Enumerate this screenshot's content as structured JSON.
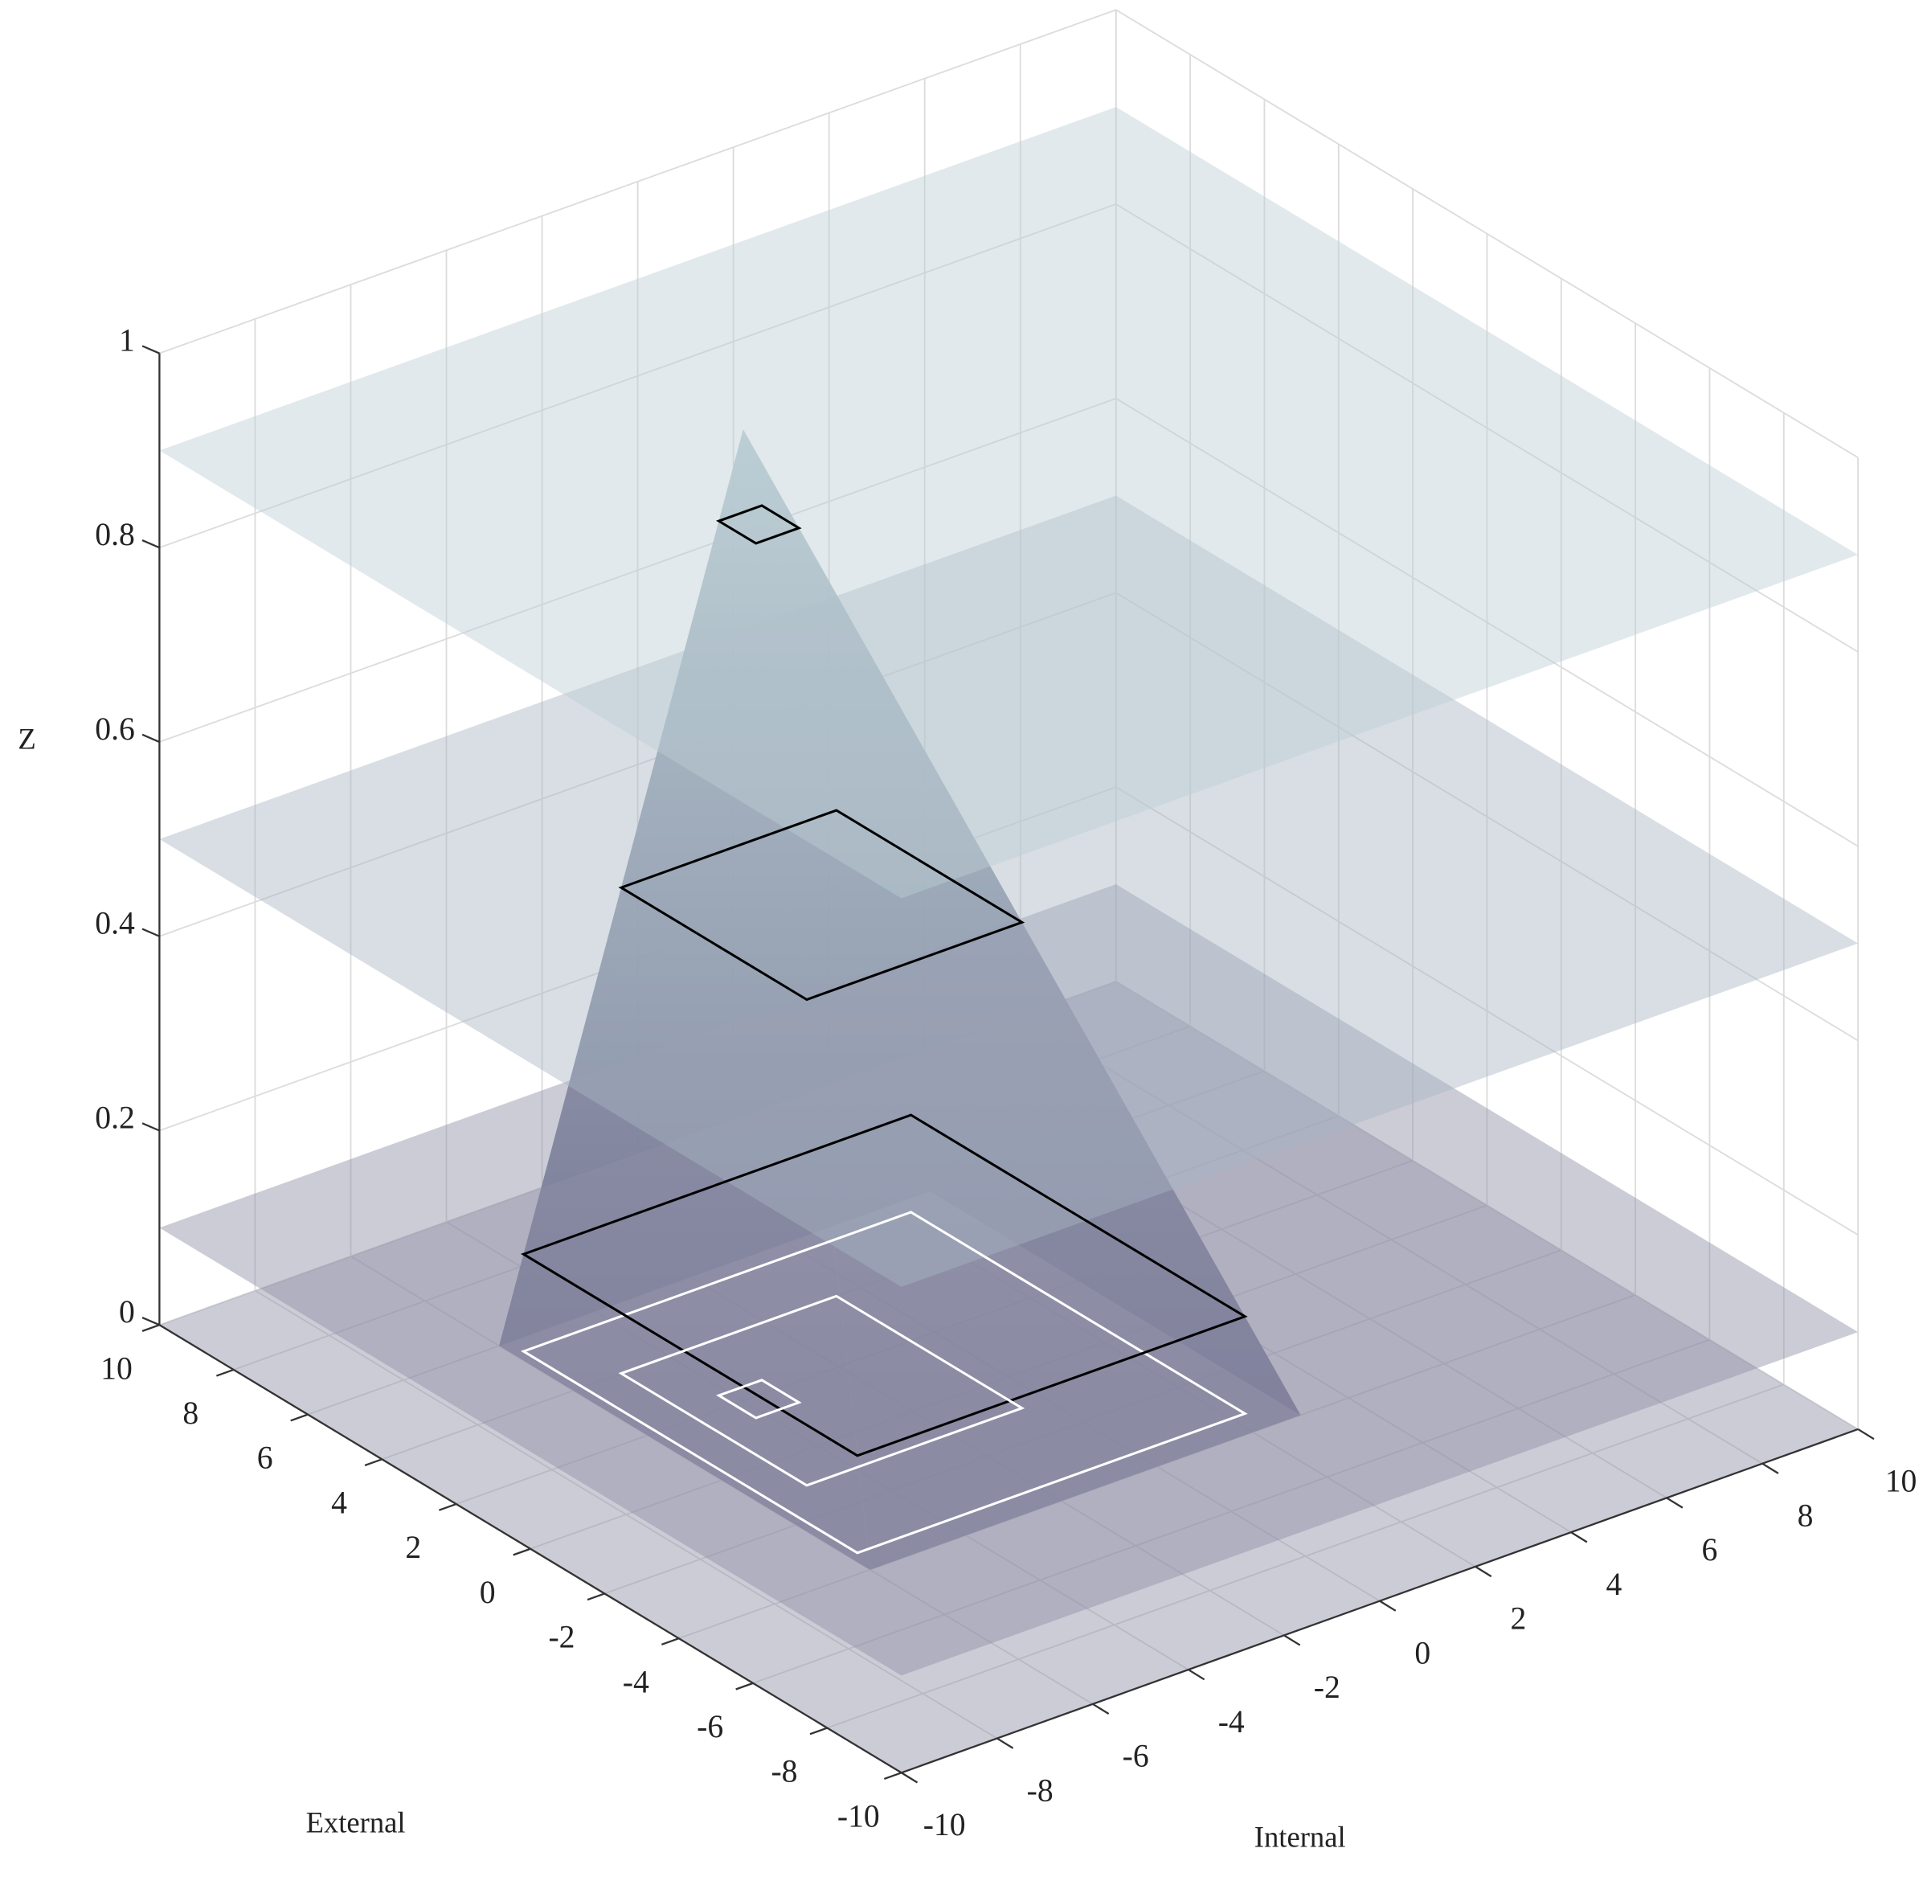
{
  "chart_data": {
    "type": "surface3d",
    "xlabel": "Internal",
    "ylabel": "External",
    "zlabel": "Z",
    "xlim": [
      -10,
      10
    ],
    "ylim": [
      -10,
      10
    ],
    "zlim": [
      0,
      1
    ],
    "xticks": [
      -10,
      -8,
      -6,
      -4,
      -2,
      0,
      2,
      4,
      6,
      8,
      10
    ],
    "yticks": [
      -10,
      -8,
      -6,
      -4,
      -2,
      0,
      2,
      4,
      6,
      8,
      10
    ],
    "zticks": [
      0,
      0.2,
      0.4,
      0.6,
      0.8,
      1
    ],
    "grid": true,
    "planes": [
      0,
      0.1,
      0.5,
      0.9
    ],
    "plane_colors": [
      "#8e8fa6",
      "#8e8fa6",
      "#a9b5c3",
      "#bccfd4"
    ],
    "plane_alpha": 0.45,
    "pyramid": {
      "base_x": [
        -6,
        3
      ],
      "base_y": [
        -4,
        6
      ],
      "apex": [
        -4,
        2,
        1
      ]
    },
    "colormap": [
      "#5d5f80",
      "#b8ccd2"
    ],
    "contour_levels": [
      0.1,
      0.5,
      0.9
    ],
    "contour_color": "#000000",
    "projected_contour_color": "#ffffff"
  }
}
